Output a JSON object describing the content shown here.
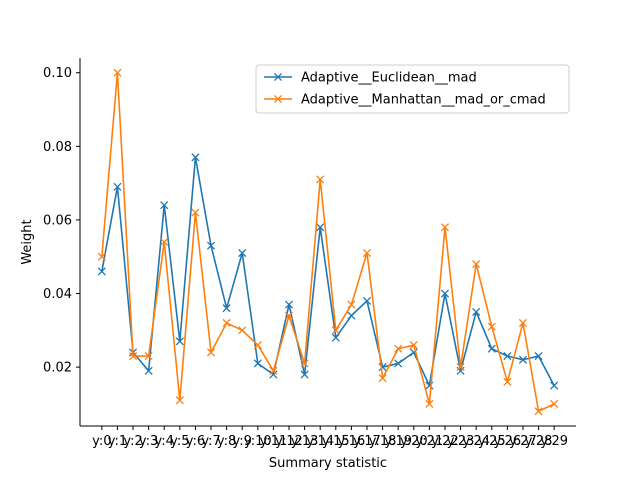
{
  "chart_data": {
    "type": "line",
    "xlabel": "Summary statistic",
    "ylabel": "Weight",
    "categories": [
      "y:0",
      "y:1",
      "y:2",
      "y:3",
      "y:4",
      "y:5",
      "y:6",
      "y:7",
      "y:8",
      "y:9",
      "y:10",
      "y:11",
      "y:12",
      "y:13",
      "y:14",
      "y:15",
      "y:16",
      "y:17",
      "y:18",
      "y:19",
      "y:20",
      "y:21",
      "y:22",
      "y:23",
      "y:24",
      "y:25",
      "y:26",
      "y:27",
      "y:28",
      "y:29"
    ],
    "ylim": [
      0.004,
      0.104
    ],
    "yticks": [
      0.02,
      0.04,
      0.06,
      0.08,
      0.1
    ],
    "ytick_labels": [
      "0.02",
      "0.04",
      "0.06",
      "0.08",
      "0.10"
    ],
    "grid": false,
    "legend_position": "top-right",
    "marker": "x",
    "series": [
      {
        "name": "Adaptive__Euclidean__mad",
        "color": "#1f77b4",
        "values": [
          0.046,
          0.069,
          0.024,
          0.019,
          0.064,
          0.027,
          0.077,
          0.053,
          0.036,
          0.051,
          0.021,
          0.018,
          0.037,
          0.018,
          0.058,
          0.028,
          0.034,
          0.038,
          0.02,
          0.021,
          0.024,
          0.015,
          0.04,
          0.019,
          0.035,
          0.025,
          0.023,
          0.022,
          0.023,
          0.015
        ]
      },
      {
        "name": "Adaptive__Manhattan__mad_or_cmad",
        "color": "#ff7f0e",
        "values": [
          0.05,
          0.1,
          0.023,
          0.023,
          0.054,
          0.011,
          0.062,
          0.024,
          0.032,
          0.03,
          0.026,
          0.019,
          0.034,
          0.021,
          0.071,
          0.03,
          0.037,
          0.051,
          0.017,
          0.025,
          0.026,
          0.01,
          0.058,
          0.02,
          0.048,
          0.031,
          0.016,
          0.032,
          0.008,
          0.01
        ]
      }
    ]
  }
}
